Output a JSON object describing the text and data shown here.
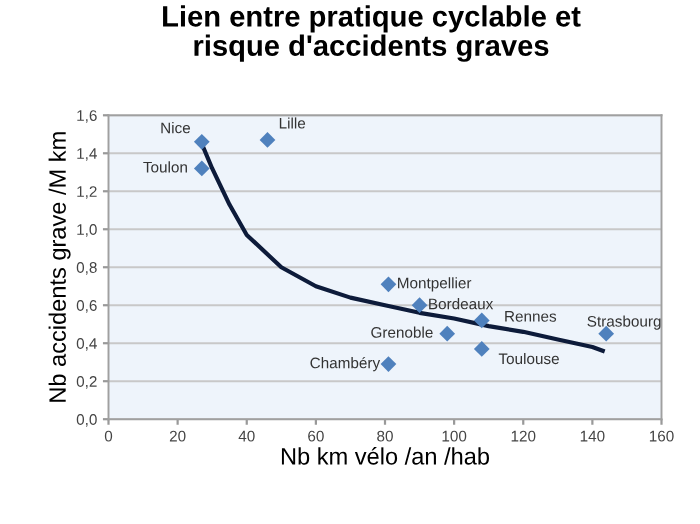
{
  "chart_data": {
    "type": "scatter",
    "title": "Lien entre pratique cyclable et\nrisque d'accidents graves",
    "xlabel": "Nb km vélo /an /hab",
    "ylabel": "Nb accidents grave /M km",
    "xlim": [
      0,
      160
    ],
    "xticks": [
      0,
      20,
      40,
      60,
      80,
      100,
      120,
      140,
      160
    ],
    "ylim": [
      0,
      1.6
    ],
    "yticks": [
      {
        "value": 0,
        "label": "0,0"
      },
      {
        "value": 0.2,
        "label": "0,2"
      },
      {
        "value": 0.4,
        "label": "0,4"
      },
      {
        "value": 0.6,
        "label": "0,6"
      },
      {
        "value": 0.8,
        "label": "0,8"
      },
      {
        "value": 1.0,
        "label": "1,0"
      },
      {
        "value": 1.2,
        "label": "1,2"
      },
      {
        "value": 1.4,
        "label": "1,4"
      },
      {
        "value": 1.6,
        "label": "1,6"
      }
    ],
    "grid": "y",
    "marker": "diamond",
    "series": [
      {
        "color": "#4f81bd",
        "x": [
          27,
          27,
          46,
          81,
          90,
          108,
          98,
          108,
          81,
          144
        ],
        "values": [
          1.46,
          1.32,
          1.47,
          0.71,
          0.6,
          0.52,
          0.45,
          0.37,
          0.29,
          0.45
        ]
      },
      {
        "type": "line",
        "color": "#0d1b3a",
        "marker": "none",
        "x": [
          27,
          30,
          35,
          40,
          50,
          60,
          70,
          80,
          90,
          100,
          110,
          120,
          130,
          140,
          143
        ],
        "values": [
          1.45,
          1.32,
          1.13,
          0.97,
          0.8,
          0.7,
          0.64,
          0.6,
          0.56,
          0.53,
          0.49,
          0.46,
          0.42,
          0.38,
          0.36
        ]
      }
    ],
    "annotations": [
      {
        "text": "Nice",
        "x": 27,
        "y": 1.46
      },
      {
        "text": "Toulon",
        "x": 27,
        "y": 1.32
      },
      {
        "text": "Lille",
        "x": 46,
        "y": 1.47
      },
      {
        "text": "Montpellier",
        "x": 81,
        "y": 0.71
      },
      {
        "text": "Bordeaux",
        "x": 90,
        "y": 0.6
      },
      {
        "text": "Rennes",
        "x": 108,
        "y": 0.52
      },
      {
        "text": "Grenoble",
        "x": 98,
        "y": 0.45
      },
      {
        "text": "Toulouse",
        "x": 108,
        "y": 0.37
      },
      {
        "text": "Chambéry",
        "x": 81,
        "y": 0.29
      },
      {
        "text": "Strasbourg",
        "x": 144,
        "y": 0.45
      }
    ]
  }
}
